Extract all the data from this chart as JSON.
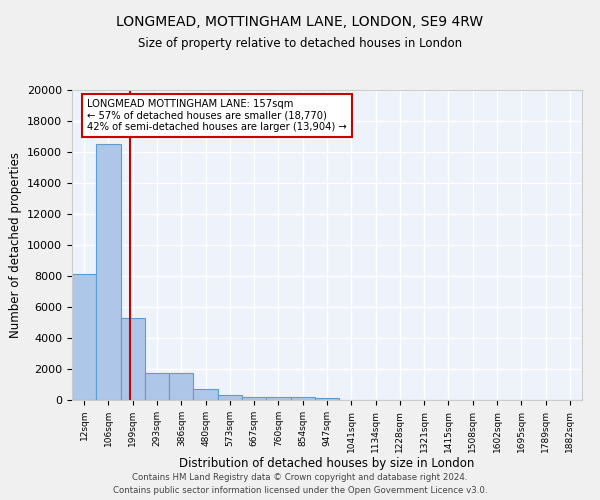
{
  "title": "LONGMEAD, MOTTINGHAM LANE, LONDON, SE9 4RW",
  "subtitle": "Size of property relative to detached houses in London",
  "xlabel": "Distribution of detached houses by size in London",
  "ylabel": "Number of detached properties",
  "bar_color": "#aec6e8",
  "bar_edge_color": "#5a9fd4",
  "background_color": "#eef3fb",
  "grid_color": "#ffffff",
  "categories": [
    "12sqm",
    "106sqm",
    "199sqm",
    "293sqm",
    "386sqm",
    "480sqm",
    "573sqm",
    "667sqm",
    "760sqm",
    "854sqm",
    "947sqm",
    "1041sqm",
    "1134sqm",
    "1228sqm",
    "1321sqm",
    "1415sqm",
    "1508sqm",
    "1602sqm",
    "1695sqm",
    "1789sqm",
    "1882sqm"
  ],
  "values": [
    8100,
    16500,
    5300,
    1750,
    1750,
    700,
    310,
    220,
    180,
    180,
    130,
    0,
    0,
    0,
    0,
    0,
    0,
    0,
    0,
    0,
    0
  ],
  "red_line_x": 1.9,
  "annotation_text": "LONGMEAD MOTTINGHAM LANE: 157sqm\n← 57% of detached houses are smaller (18,770)\n42% of semi-detached houses are larger (13,904) →",
  "annotation_box_color": "#ffffff",
  "annotation_box_edge": "#cc0000",
  "red_line_color": "#cc0000",
  "footer": "Contains HM Land Registry data © Crown copyright and database right 2024.\nContains public sector information licensed under the Open Government Licence v3.0.",
  "ylim": [
    0,
    20000
  ],
  "yticks": [
    0,
    2000,
    4000,
    6000,
    8000,
    10000,
    12000,
    14000,
    16000,
    18000,
    20000
  ],
  "fig_bg": "#f0f0f0"
}
